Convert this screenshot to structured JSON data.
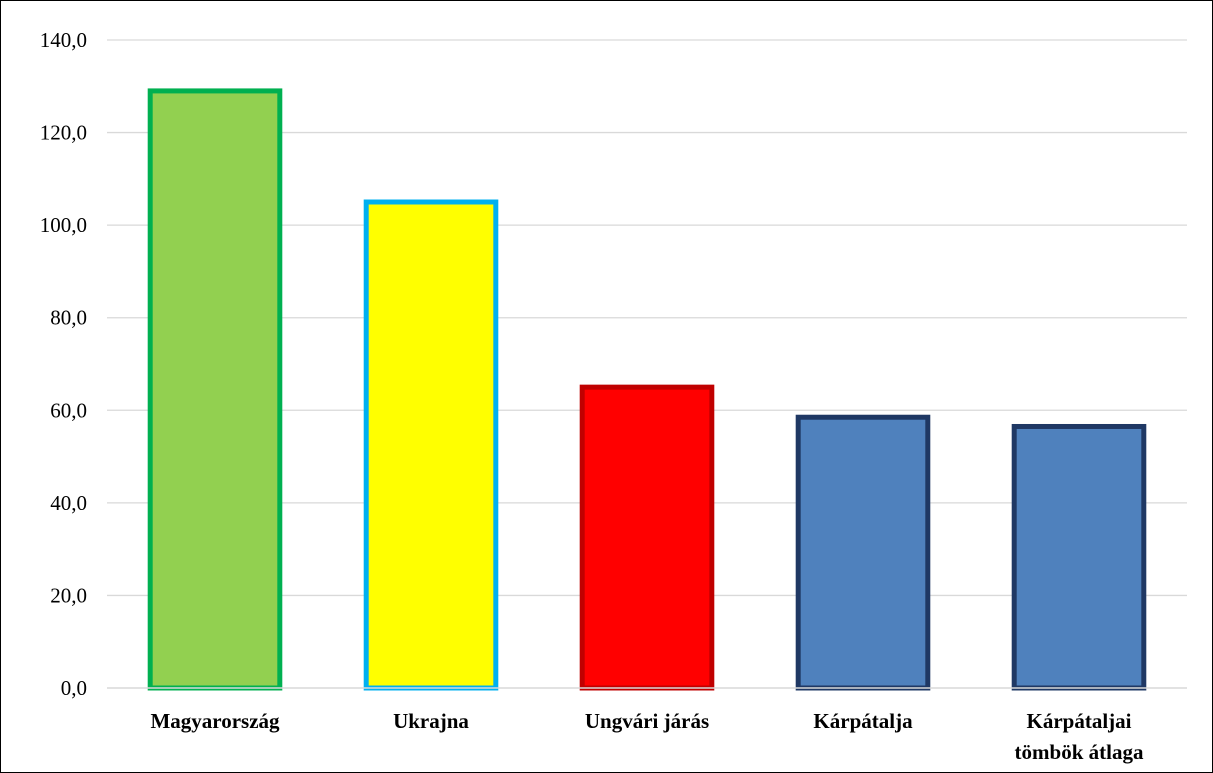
{
  "chart_data": {
    "type": "bar",
    "title": "",
    "xlabel": "",
    "ylabel": "",
    "categories": [
      [
        "Magyarország"
      ],
      [
        "Ukrajna"
      ],
      [
        "Ungvári járás"
      ],
      [
        "Kárpátalja"
      ],
      [
        "Kárpátaljai",
        "tömbök átlaga"
      ]
    ],
    "values": [
      129.0,
      105.0,
      65.0,
      58.5,
      56.5
    ],
    "ylim": [
      0,
      140
    ],
    "yticks": [
      "0,0",
      "20,0",
      "40,0",
      "60,0",
      "80,0",
      "100,0",
      "120,0",
      "140,0"
    ],
    "grid": true,
    "legend": "none",
    "bar_fills": [
      "#92d050",
      "#ffff00",
      "#ff0000",
      "#4f81bd",
      "#4f81bd"
    ],
    "bar_borders": [
      "#00b050",
      "#00b0f0",
      "#c00000",
      "#1f3864",
      "#1f3864"
    ]
  }
}
